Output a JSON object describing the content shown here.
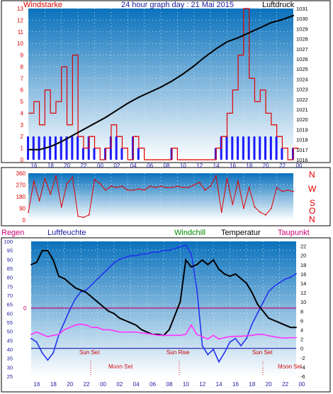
{
  "colors": {
    "wind": "#e00000",
    "gust_blue": "#1a1aff",
    "pressure": "#000000",
    "humidity": "#2233ee",
    "temperature": "#000000",
    "dewpoint": "#ff33ff",
    "windchill": "#008800",
    "plot_top": "#0b76be",
    "plot_bottom": "#ffffff",
    "zero_line": "#cc0077",
    "rain_line": "#0000aa",
    "astro": "#cc0000"
  },
  "header": {
    "left": "Windstarke",
    "center": "24 hour graph day : 21 Mai 2015",
    "right": "Luftdruck"
  },
  "panel2": {
    "compass": [
      "N",
      "W",
      "S",
      "O",
      "N"
    ],
    "y_ticks": [
      "360",
      "270",
      "180",
      "90",
      "0"
    ]
  },
  "panel3": {
    "labels": {
      "regen": "Regen",
      "luftfeuchte": "Luftfeuchte",
      "windchill": "Windchill",
      "temperatur": "Temperatur",
      "taupunkt": "Taupunkt"
    },
    "zero_marker": "0",
    "events": [
      "Sun Set",
      "Sun Rise",
      "Sun Set",
      "Moon Set",
      "Moon Set"
    ]
  },
  "chart_data": [
    {
      "type": "line",
      "panel": "wind and pressure",
      "x_ticks": [
        "16",
        "18",
        "20",
        "22",
        "00",
        "02",
        "04",
        "06",
        "08",
        "10",
        "12",
        "14",
        "16",
        "18",
        "20",
        "22",
        "00"
      ],
      "y_left_ticks": [
        "0",
        "1",
        "2",
        "3",
        "4",
        "5",
        "6",
        "7",
        "8",
        "9",
        "10",
        "11",
        "12",
        "13"
      ],
      "y_right_ticks": [
        "1016",
        "1017",
        "1018",
        "1019",
        "1020",
        "1021",
        "1022",
        "1023",
        "1024",
        "1025",
        "1026",
        "1027",
        "1028",
        "1029",
        "1030",
        "1031"
      ],
      "left_axis_title": "Windstarke",
      "right_axis_title": "Luftdruck",
      "ylim_left": [
        0,
        13
      ],
      "ylim_right": [
        1016,
        1031
      ],
      "series": [
        {
          "name": "Windstarke",
          "x": [
            0,
            1,
            2,
            3,
            4,
            5,
            6,
            7,
            8,
            9,
            10,
            11,
            12,
            13,
            14,
            15,
            16,
            17,
            18,
            19,
            20,
            21,
            22,
            23,
            24,
            25,
            26,
            27,
            28,
            29,
            30,
            31,
            32,
            33,
            34,
            35,
            36,
            37,
            38,
            39,
            40,
            41,
            42,
            43,
            44,
            45,
            46,
            47,
            48
          ],
          "y": [
            4,
            5,
            3,
            6,
            4,
            5,
            8,
            3,
            9,
            2,
            1,
            2,
            1,
            0,
            1,
            3,
            2,
            1,
            0,
            2,
            1,
            0,
            0,
            0,
            0,
            0,
            1,
            0,
            0,
            0,
            0,
            0,
            0,
            0,
            1,
            2,
            4,
            6,
            9,
            13,
            7,
            5,
            6,
            4,
            3,
            2,
            1,
            0,
            1
          ]
        },
        {
          "name": "Luftdruck",
          "x": [
            0,
            2,
            4,
            6,
            8,
            10,
            12,
            14,
            16,
            18,
            20,
            22,
            24,
            26,
            28,
            30,
            32,
            34,
            36,
            38,
            40,
            42,
            44,
            46,
            48
          ],
          "y": [
            1017.0,
            1017.0,
            1017.3,
            1017.8,
            1018.4,
            1019.0,
            1019.6,
            1020.2,
            1020.9,
            1021.6,
            1022.2,
            1022.7,
            1023.2,
            1023.8,
            1024.5,
            1025.3,
            1026.2,
            1027.0,
            1027.7,
            1028.1,
            1028.6,
            1029.1,
            1029.6,
            1029.9,
            1030.3
          ]
        }
      ]
    },
    {
      "type": "line",
      "panel": "wind direction",
      "y_ticks": [
        "360",
        "270",
        "180",
        "90",
        "0"
      ],
      "ylim": [
        0,
        360
      ],
      "series": [
        {
          "name": "Windrichtung",
          "x": [
            0,
            1,
            2,
            3,
            4,
            5,
            6,
            7,
            8,
            9,
            10,
            11,
            12,
            13,
            14,
            15,
            16,
            17,
            18,
            19,
            20,
            21,
            22,
            23,
            24,
            25,
            26,
            27,
            28,
            29,
            30,
            31,
            32,
            33,
            34,
            35,
            36,
            37,
            38,
            39,
            40,
            41,
            42,
            43,
            44,
            45,
            46,
            47,
            48
          ],
          "y": [
            60,
            300,
            150,
            320,
            200,
            340,
            100,
            280,
            330,
            30,
            20,
            40,
            310,
            280,
            230,
            260,
            250,
            260,
            230,
            230,
            240,
            230,
            260,
            250,
            260,
            250,
            250,
            260,
            250,
            250,
            270,
            290,
            230,
            260,
            340,
            60,
            320,
            120,
            300,
            90,
            250,
            100,
            60,
            40,
            90,
            250,
            220,
            230,
            220
          ]
        }
      ]
    },
    {
      "type": "line",
      "panel": "humidity and temperature",
      "x_ticks": [
        "16",
        "18",
        "20",
        "22",
        "00",
        "02",
        "04",
        "06",
        "08",
        "10",
        "12",
        "14",
        "16",
        "18",
        "20",
        "22",
        "00"
      ],
      "y_left_ticks": [
        "25",
        "30",
        "35",
        "40",
        "45",
        "50",
        "55",
        "60",
        "65",
        "70",
        "75",
        "80",
        "85",
        "90",
        "95",
        "100"
      ],
      "y_right_ticks": [
        "-6",
        "-4",
        "-2",
        "0",
        "2",
        "4",
        "6",
        "8",
        "10",
        "12",
        "14",
        "16",
        "18",
        "20",
        "22"
      ],
      "ylim_left": [
        25,
        100
      ],
      "ylim_right": [
        -6,
        23
      ],
      "series": [
        {
          "name": "Luftfeuchte",
          "x": [
            0,
            1,
            2,
            3,
            4,
            5,
            6,
            7,
            8,
            9,
            10,
            11,
            12,
            13,
            14,
            15,
            16,
            17,
            18,
            19,
            20,
            21,
            22,
            23,
            24,
            25,
            26,
            27,
            28,
            29,
            30,
            31,
            32,
            33,
            34,
            35,
            36,
            37,
            38,
            39,
            40,
            41,
            42,
            43,
            44,
            45,
            46,
            47,
            48
          ],
          "y": [
            46,
            44,
            38,
            34,
            38,
            48,
            55,
            62,
            68,
            72,
            73,
            76,
            79,
            82,
            85,
            88,
            90,
            91,
            92,
            92,
            93,
            93,
            94,
            94,
            95,
            95,
            96,
            97,
            98,
            93,
            74,
            42,
            37,
            40,
            33,
            38,
            44,
            46,
            42,
            46,
            54,
            60,
            66,
            72,
            75,
            77,
            79,
            80,
            82
          ]
        },
        {
          "name": "Temperatur",
          "x": [
            0,
            1,
            2,
            3,
            4,
            5,
            6,
            7,
            8,
            9,
            10,
            11,
            12,
            13,
            14,
            15,
            16,
            17,
            18,
            19,
            20,
            21,
            22,
            23,
            24,
            25,
            26,
            27,
            28,
            29,
            30,
            31,
            32,
            33,
            34,
            35,
            36,
            37,
            38,
            39,
            40,
            41,
            42,
            43,
            44,
            45,
            46,
            47,
            48
          ],
          "y": [
            18,
            18.5,
            21,
            21,
            19,
            15.5,
            15,
            14,
            13,
            12.5,
            12,
            11,
            10,
            9,
            8,
            7.5,
            6.5,
            6,
            5.5,
            5,
            4,
            3.5,
            3,
            3,
            2.8,
            4,
            7,
            10,
            19,
            17.5,
            18,
            19,
            18,
            19,
            17,
            16,
            15.5,
            16,
            15,
            14,
            12,
            9.5,
            8,
            6.5,
            6,
            5.5,
            5,
            4.5,
            4.5
          ]
        },
        {
          "name": "Taupunkt",
          "x": [
            0,
            1,
            2,
            3,
            4,
            5,
            6,
            7,
            8,
            9,
            10,
            11,
            12,
            13,
            14,
            15,
            16,
            17,
            18,
            19,
            20,
            21,
            22,
            23,
            24,
            25,
            26,
            27,
            28,
            29,
            30,
            31,
            32,
            33,
            34,
            35,
            36,
            37,
            38,
            39,
            40,
            41,
            42,
            43,
            44,
            45,
            46,
            47,
            48
          ],
          "y": [
            3,
            3.5,
            3,
            2.5,
            2.8,
            3,
            4,
            4.5,
            5,
            5.2,
            5,
            4.5,
            4.5,
            4,
            4,
            3.8,
            3.5,
            3.5,
            3.5,
            3.5,
            3.3,
            3.2,
            3,
            2.8,
            2.8,
            2.8,
            2.8,
            2.8,
            3,
            5,
            3,
            2.5,
            2,
            2.8,
            2,
            2.3,
            2.5,
            2.6,
            2.6,
            2.7,
            2.8,
            3,
            3,
            2.7,
            2.5,
            2.3,
            2.2,
            2.3,
            2.3
          ]
        }
      ]
    }
  ]
}
